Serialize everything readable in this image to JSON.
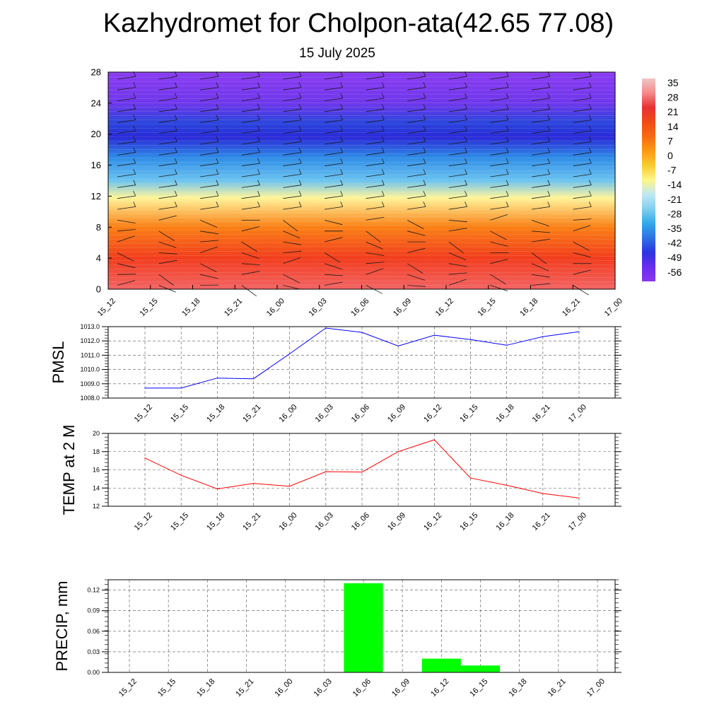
{
  "title": "Kazhydromet for Cholpon-ata(42.65 77.08)",
  "subtitle": "15 July 2025",
  "chart_data": [
    {
      "type": "heatmap",
      "name": "cross-section",
      "description_of_fields": "temperature colour shading with wind barbs",
      "x_categories": [
        "15_12",
        "15_15",
        "15_18",
        "15_21",
        "16_00",
        "16_03",
        "16_06",
        "16_09",
        "16_12",
        "16_15",
        "16_18",
        "16_21",
        "17_00"
      ],
      "ylim": [
        0,
        28
      ],
      "yticks": [
        0,
        4,
        8,
        12,
        16,
        20,
        24,
        28
      ],
      "temperature_profile_by_y": [
        {
          "y": 0,
          "t": 30
        },
        {
          "y": 4,
          "t": 18
        },
        {
          "y": 8,
          "t": 6
        },
        {
          "y": 11.8,
          "t": -13
        },
        {
          "y": 14,
          "t": -24
        },
        {
          "y": 17,
          "t": -38
        },
        {
          "y": 19.6,
          "t": -55
        },
        {
          "y": 21.5,
          "t": -50
        },
        {
          "y": 24,
          "t": -60
        },
        {
          "y": 28,
          "t": -62
        }
      ],
      "colorbar": {
        "labels": [
          "35",
          "28",
          "21",
          "14",
          "7",
          "0",
          "-7",
          "-14",
          "-21",
          "-28",
          "-35",
          "-42",
          "-49",
          "-56"
        ],
        "colors": [
          "#f3c4c4",
          "#f48a8a",
          "#e83030",
          "#f04a16",
          "#f86a10",
          "#fc9a14",
          "#fdcb30",
          "#fff58a",
          "#bfe8f3",
          "#7ed0f2",
          "#32a8ea",
          "#2b72e6",
          "#2b34e0",
          "#6a2cf0",
          "#8a36ee"
        ]
      },
      "grid": false,
      "wind_barbs": true
    },
    {
      "type": "line",
      "name": "pmsl",
      "ylabel": "PMSL",
      "categories": [
        "15_12",
        "15_15",
        "15_18",
        "15_21",
        "16_00",
        "16_03",
        "16_06",
        "16_09",
        "16_12",
        "16_15",
        "16_18",
        "16_21",
        "17_00"
      ],
      "values": [
        1008.7,
        1008.7,
        1009.4,
        1009.35,
        1011.1,
        1012.9,
        1012.6,
        1011.65,
        1012.4,
        1012.1,
        1011.7,
        1012.3,
        1012.65
      ],
      "ylim": [
        1008.0,
        1013.0
      ],
      "yticks": [
        "1008.0",
        "1009.0",
        "1010.0",
        "1011.0",
        "1012.0",
        "1013.0"
      ],
      "color": "#0000ff",
      "grid": true
    },
    {
      "type": "line",
      "name": "temp2m",
      "ylabel": "TEMP at 2 M",
      "categories": [
        "15_12",
        "15_15",
        "15_18",
        "15_21",
        "16_00",
        "16_03",
        "16_06",
        "16_09",
        "16_12",
        "16_15",
        "16_18",
        "16_21",
        "17_00"
      ],
      "values": [
        17.3,
        15.4,
        13.9,
        14.5,
        14.2,
        15.8,
        15.75,
        18.0,
        19.3,
        15.1,
        14.3,
        13.4,
        12.9
      ],
      "ylim": [
        12,
        20
      ],
      "yticks": [
        "12",
        "14",
        "16",
        "18",
        "20"
      ],
      "color": "#ff0000",
      "grid": true
    },
    {
      "type": "bar",
      "name": "precip",
      "ylabel": "PRECIP, mm",
      "categories": [
        "15_12",
        "15_15",
        "15_18",
        "15_21",
        "16_00",
        "16_03",
        "16_06",
        "16_09",
        "16_12",
        "16_15",
        "16_18",
        "16_21",
        "17_00"
      ],
      "values": [
        0,
        0,
        0,
        0,
        0,
        0,
        0.13,
        0,
        0.02,
        0.01,
        0,
        0,
        0
      ],
      "ylim": [
        0,
        0.135
      ],
      "yticks": [
        "0.00",
        "0.03",
        "0.06",
        "0.09",
        "0.12"
      ],
      "color": "#00ff00",
      "grid": true
    }
  ]
}
